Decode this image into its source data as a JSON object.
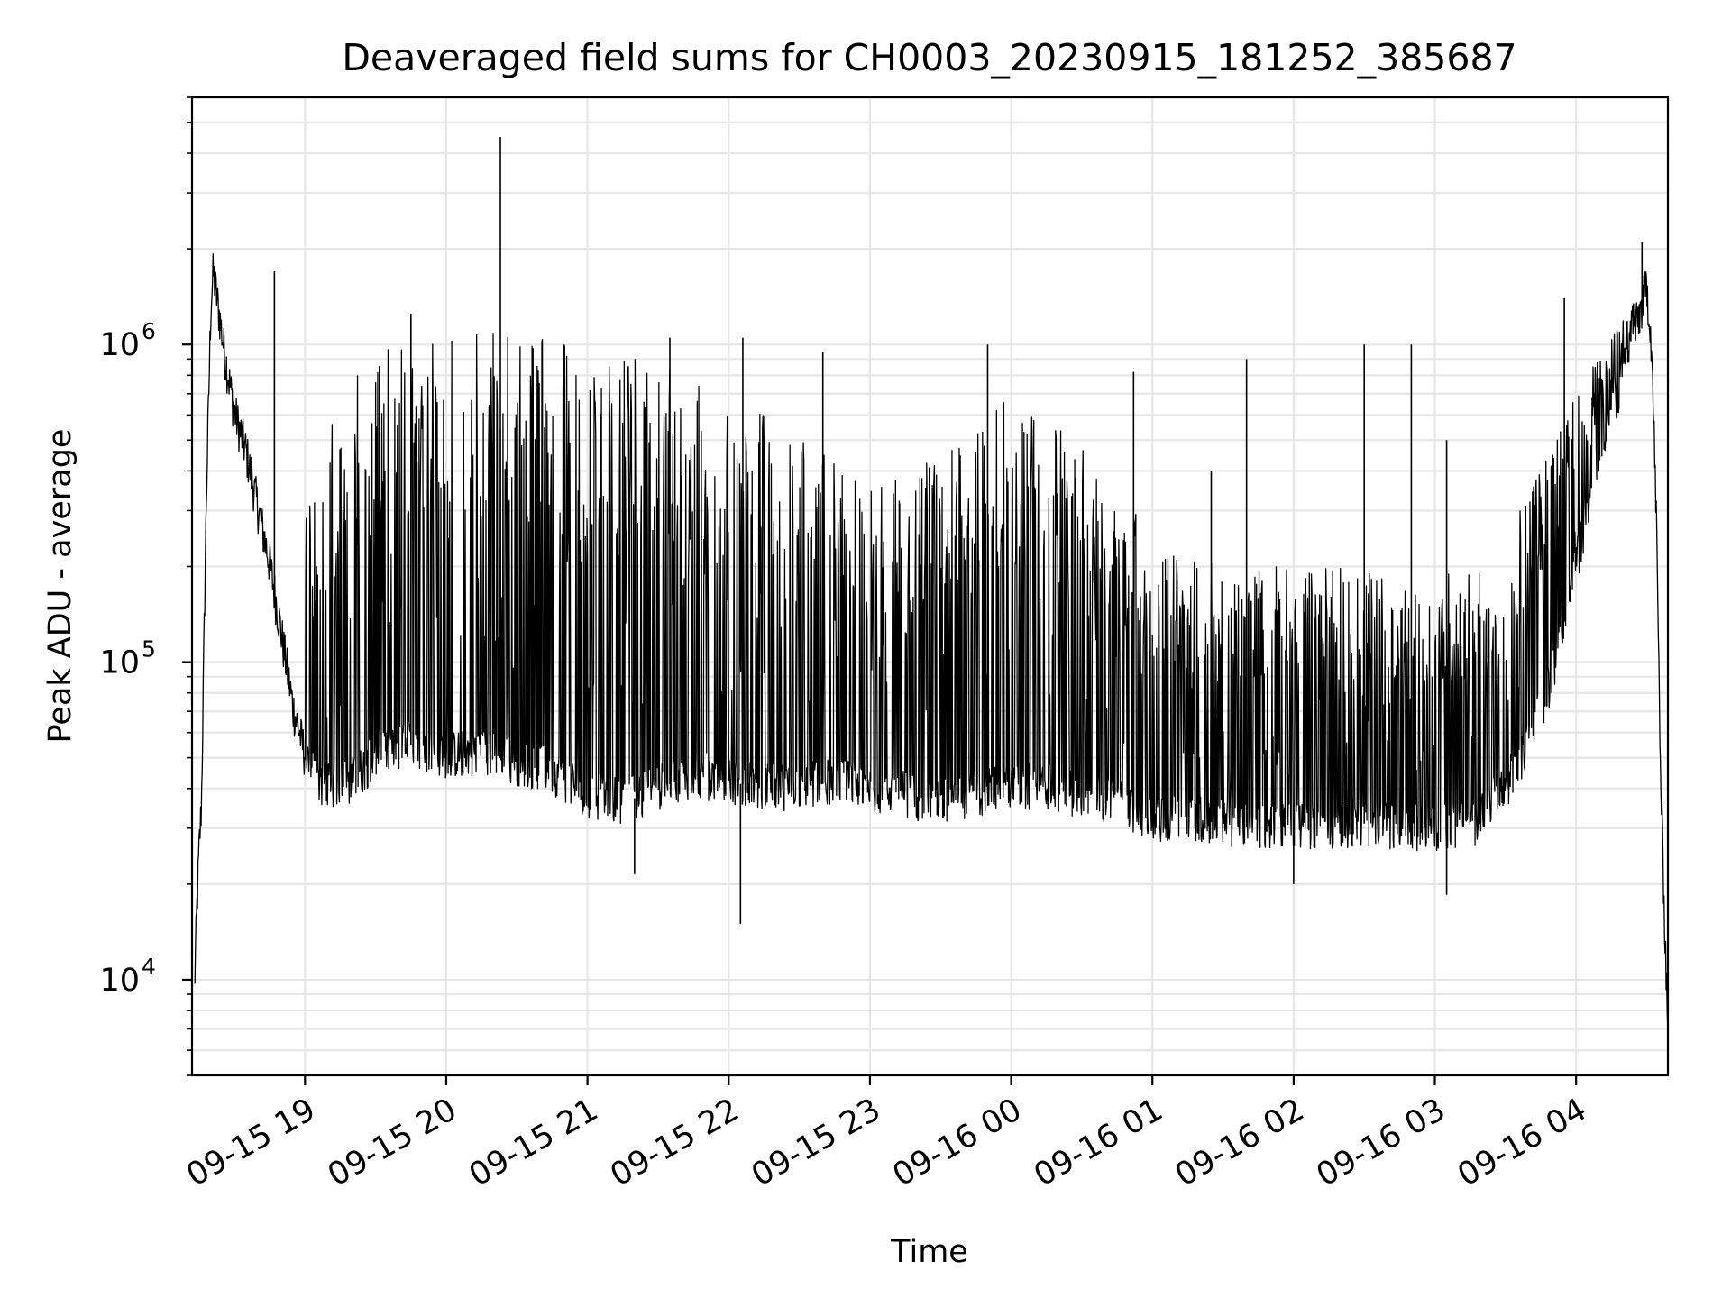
{
  "chart_data": {
    "type": "line",
    "title": "Deaveraged field sums for CH0003_20230915_181252_385687",
    "xlabel": "Time",
    "ylabel": "Peak ADU - average",
    "y_scale": "log",
    "grid": true,
    "line_color": "#000000",
    "grid_color": "#e6e6e6",
    "xlim": [
      "2023-09-15 18:12",
      "2023-09-16 04:39"
    ],
    "ylim": [
      5000,
      6000000
    ],
    "x_ticks": [
      {
        "t": "2023-09-15 19:00",
        "label": "09-15 19"
      },
      {
        "t": "2023-09-15 20:00",
        "label": "09-15 20"
      },
      {
        "t": "2023-09-15 21:00",
        "label": "09-15 21"
      },
      {
        "t": "2023-09-15 22:00",
        "label": "09-15 22"
      },
      {
        "t": "2023-09-15 23:00",
        "label": "09-15 23"
      },
      {
        "t": "2023-09-16 00:00",
        "label": "09-16 00"
      },
      {
        "t": "2023-09-16 01:00",
        "label": "09-16 01"
      },
      {
        "t": "2023-09-16 02:00",
        "label": "09-16 02"
      },
      {
        "t": "2023-09-16 03:00",
        "label": "09-16 03"
      },
      {
        "t": "2023-09-16 04:00",
        "label": "09-16 04"
      }
    ],
    "y_ticks": [
      {
        "value": 10000,
        "base": "10",
        "exp": "4"
      },
      {
        "value": 100000,
        "base": "10",
        "exp": "5"
      },
      {
        "value": 1000000,
        "base": "10",
        "exp": "6"
      }
    ],
    "series": [
      {
        "points": [
          [
            "2023-09-15 18:13",
            9000
          ],
          [
            "2023-09-15 18:14",
            16000
          ],
          [
            "2023-09-15 18:15",
            25000
          ],
          [
            "2023-09-15 18:16",
            35000
          ],
          [
            "2023-09-15 18:18",
            300000
          ],
          [
            "2023-09-15 18:20",
            1300000
          ],
          [
            "2023-09-15 18:21",
            1650000
          ],
          [
            "2023-09-15 18:23",
            1300000
          ],
          [
            "2023-09-15 18:26",
            900000
          ],
          [
            "2023-09-15 18:30",
            600000
          ],
          [
            "2023-09-15 18:35",
            450000
          ],
          [
            "2023-09-15 18:40",
            300000
          ],
          [
            "2023-09-15 18:45",
            200000
          ],
          [
            "2023-09-15 18:50",
            120000
          ],
          [
            "2023-09-15 18:55",
            70000
          ],
          [
            "2023-09-15 19:00",
            50000
          ],
          [
            "2023-09-15 19:05",
            42000
          ],
          [
            "2023-09-15 19:10",
            40000
          ],
          [
            "2023-09-15 19:20",
            42000
          ],
          [
            "2023-09-15 19:30",
            50000
          ],
          [
            "2023-09-15 19:45",
            55000
          ],
          [
            "2023-09-15 20:00",
            50000
          ],
          [
            "2023-09-15 20:15",
            52000
          ],
          [
            "2023-09-15 20:30",
            48000
          ],
          [
            "2023-09-15 20:45",
            45000
          ],
          [
            "2023-09-15 21:00",
            38000
          ],
          [
            "2023-09-15 21:15",
            36000
          ],
          [
            "2023-09-15 21:30",
            40000
          ],
          [
            "2023-09-15 21:45",
            44000
          ],
          [
            "2023-09-15 22:00",
            42000
          ],
          [
            "2023-09-15 22:15",
            40000
          ],
          [
            "2023-09-15 22:30",
            40000
          ],
          [
            "2023-09-15 22:45",
            42000
          ],
          [
            "2023-09-15 23:00",
            40000
          ],
          [
            "2023-09-15 23:15",
            38000
          ],
          [
            "2023-09-15 23:30",
            36000
          ],
          [
            "2023-09-15 23:45",
            38000
          ],
          [
            "2023-09-16 00:00",
            40000
          ],
          [
            "2023-09-16 00:15",
            40000
          ],
          [
            "2023-09-16 00:30",
            38000
          ],
          [
            "2023-09-16 00:45",
            36000
          ],
          [
            "2023-09-16 01:00",
            32000
          ],
          [
            "2023-09-16 01:15",
            32000
          ],
          [
            "2023-09-16 01:30",
            31000
          ],
          [
            "2023-09-16 01:45",
            30000
          ],
          [
            "2023-09-16 02:00",
            30000
          ],
          [
            "2023-09-16 02:15",
            30000
          ],
          [
            "2023-09-16 02:30",
            31000
          ],
          [
            "2023-09-16 02:45",
            30000
          ],
          [
            "2023-09-16 03:00",
            30000
          ],
          [
            "2023-09-16 03:15",
            30000
          ],
          [
            "2023-09-16 03:30",
            40000
          ],
          [
            "2023-09-16 03:40",
            55000
          ],
          [
            "2023-09-16 03:50",
            90000
          ],
          [
            "2023-09-16 04:00",
            200000
          ],
          [
            "2023-09-16 04:10",
            450000
          ],
          [
            "2023-09-16 04:20",
            800000
          ],
          [
            "2023-09-16 04:28",
            1300000
          ],
          [
            "2023-09-16 04:30",
            1500000
          ],
          [
            "2023-09-16 04:32",
            1000000
          ],
          [
            "2023-09-16 04:34",
            300000
          ],
          [
            "2023-09-16 04:36",
            40000
          ],
          [
            "2023-09-16 04:38",
            12000
          ],
          [
            "2023-09-16 04:39",
            7000
          ]
        ],
        "envelope": [
          [
            "2023-09-15 19:00",
            300000
          ],
          [
            "2023-09-15 19:20",
            900000
          ],
          [
            "2023-09-15 19:45",
            1100000
          ],
          [
            "2023-09-15 20:00",
            1200000
          ],
          [
            "2023-09-15 20:30",
            1100000
          ],
          [
            "2023-09-15 21:00",
            950000
          ],
          [
            "2023-09-15 21:30",
            900000
          ],
          [
            "2023-09-15 22:00",
            700000
          ],
          [
            "2023-09-15 22:30",
            550000
          ],
          [
            "2023-09-15 23:00",
            350000
          ],
          [
            "2023-09-15 23:30",
            450000
          ],
          [
            "2023-09-16 00:00",
            700000
          ],
          [
            "2023-09-16 00:30",
            500000
          ],
          [
            "2023-09-16 01:00",
            250000
          ],
          [
            "2023-09-16 01:30",
            200000
          ],
          [
            "2023-09-16 02:00",
            200000
          ],
          [
            "2023-09-16 02:30",
            200000
          ],
          [
            "2023-09-16 03:00",
            180000
          ],
          [
            "2023-09-16 03:30",
            250000
          ],
          [
            "2023-09-16 04:00",
            700000
          ],
          [
            "2023-09-16 04:25",
            1400000
          ]
        ],
        "spikes": [
          [
            "2023-09-15 18:47",
            1700000
          ],
          [
            "2023-09-15 19:45",
            1250000
          ],
          [
            "2023-09-15 20:23",
            4500000
          ],
          [
            "2023-09-15 20:50",
            1000000
          ],
          [
            "2023-09-15 21:35",
            1050000
          ],
          [
            "2023-09-15 22:06",
            1050000
          ],
          [
            "2023-09-15 22:40",
            950000
          ],
          [
            "2023-09-15 23:50",
            1000000
          ],
          [
            "2023-09-16 00:52",
            820000
          ],
          [
            "2023-09-16 01:25",
            400000
          ],
          [
            "2023-09-16 01:40",
            900000
          ],
          [
            "2023-09-16 02:30",
            1000000
          ],
          [
            "2023-09-16 02:50",
            1000000
          ],
          [
            "2023-09-16 03:05",
            500000
          ],
          [
            "2023-09-16 03:55",
            1400000
          ],
          [
            "2023-09-16 04:28",
            2100000
          ]
        ],
        "dips": [
          [
            "2023-09-15 22:05",
            15000
          ],
          [
            "2023-09-16 03:05",
            18500
          ],
          [
            "2023-09-16 02:00",
            20000
          ],
          [
            "2023-09-15 21:20",
            21500
          ]
        ]
      }
    ]
  }
}
